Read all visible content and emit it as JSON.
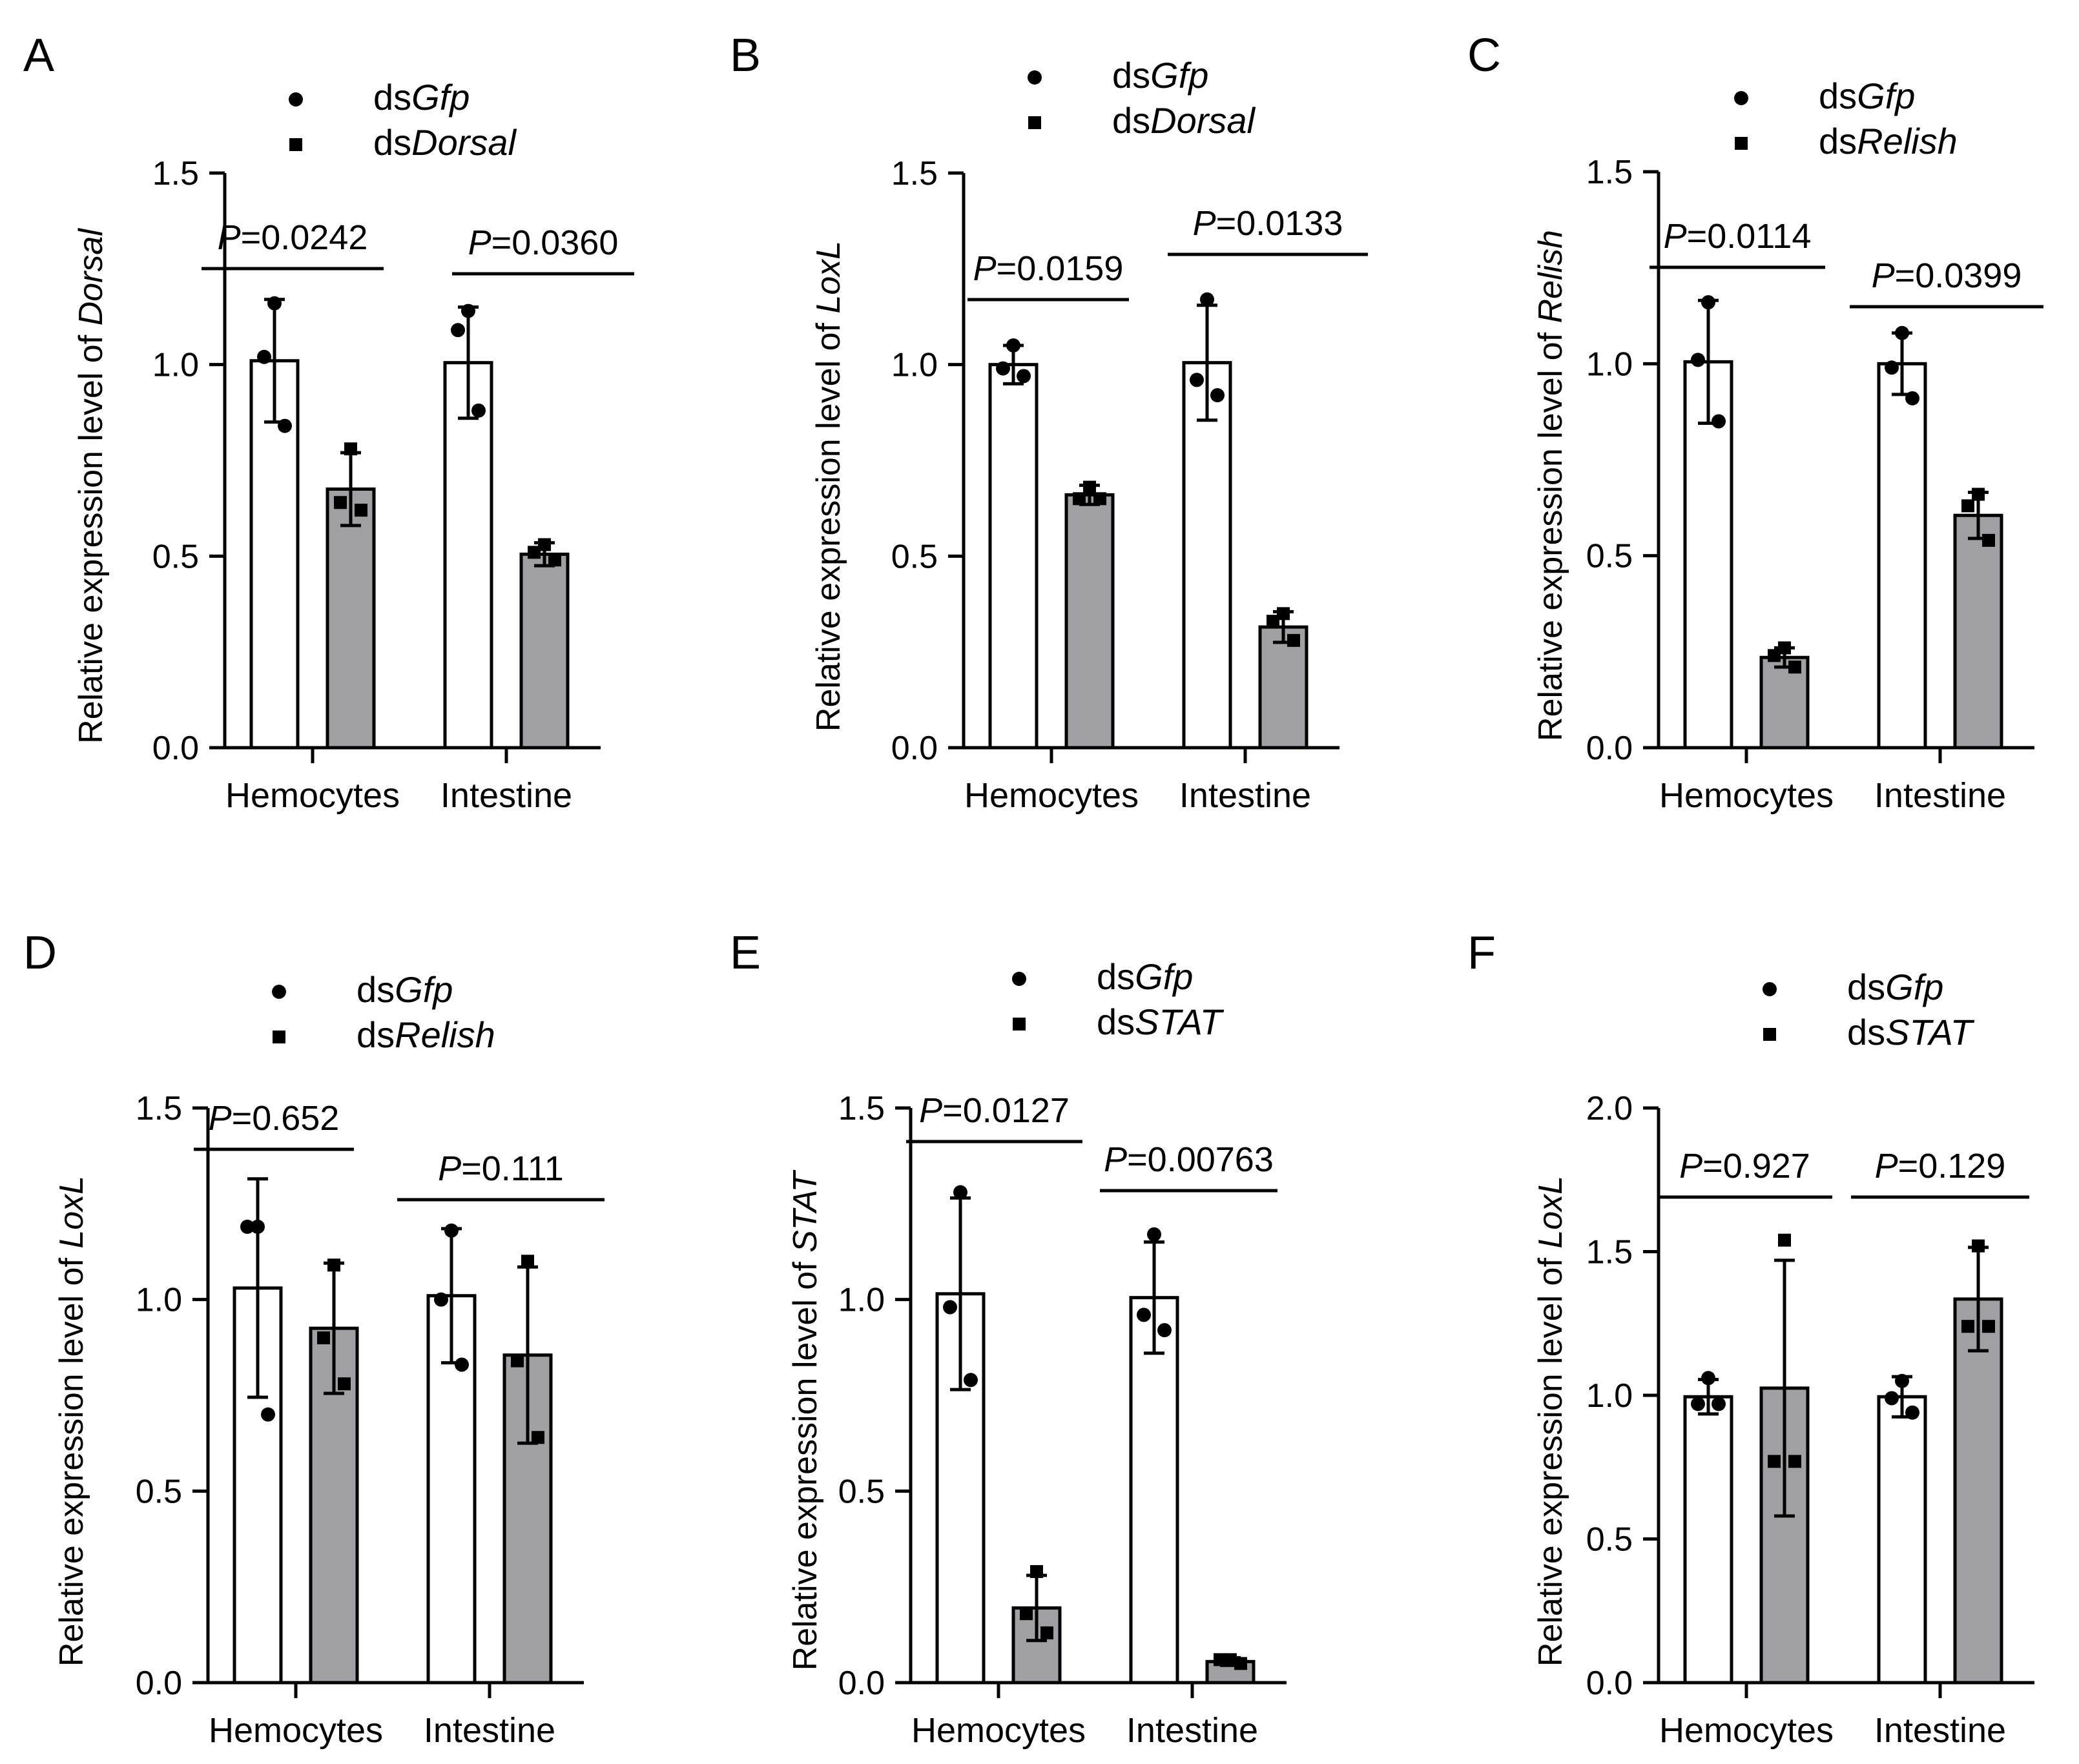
{
  "figure": {
    "colors": {
      "control_bar": "#ffffff",
      "treatment_bar": "#a0a0a4",
      "ink": "#000000"
    },
    "icons": {
      "control_marker": "circle",
      "treatment_marker": "square"
    }
  },
  "chart_data": [
    {
      "panel": "A",
      "type": "bar",
      "ylabel_prefix": "Relative expression level of ",
      "ylabel_gene": "Dorsal",
      "ylim": [
        0,
        1.5
      ],
      "yticks": [
        "0.0",
        "0.5",
        "1.0",
        "1.5"
      ],
      "categories": [
        "Hemocytes",
        "Intestine"
      ],
      "series": [
        {
          "name": "Gfp",
          "name_prefix": "ds",
          "marker": "circle",
          "values": [
            1.01,
            1.005
          ],
          "sd": [
            0.16,
            0.145
          ],
          "points": [
            [
              1.16,
              1.02,
              0.84
            ],
            [
              1.14,
              1.09,
              0.88
            ]
          ]
        },
        {
          "name": "Dorsal",
          "name_prefix": "ds",
          "marker": "square",
          "values": [
            0.675,
            0.505
          ],
          "sd": [
            0.095,
            0.03
          ],
          "points": [
            [
              0.78,
              0.64,
              0.62
            ],
            [
              0.53,
              0.51,
              0.49
            ]
          ]
        }
      ],
      "pvalues": [
        {
          "category": "Hemocytes",
          "letter": "P",
          "value": "=0.0242"
        },
        {
          "category": "Intestine",
          "letter": "P",
          "value": "=0.0360"
        }
      ]
    },
    {
      "panel": "B",
      "type": "bar",
      "ylabel_prefix": "Relative expression level of ",
      "ylabel_gene": "LoxL",
      "ylim": [
        0,
        1.5
      ],
      "yticks": [
        "0.0",
        "0.5",
        "1.0",
        "1.5"
      ],
      "categories": [
        "Hemocytes",
        "Intestine"
      ],
      "series": [
        {
          "name": "Gfp",
          "name_prefix": "ds",
          "marker": "circle",
          "values": [
            1.0,
            1.005
          ],
          "sd": [
            0.05,
            0.15
          ],
          "points": [
            [
              1.05,
              0.99,
              0.97
            ],
            [
              1.17,
              0.96,
              0.92
            ]
          ]
        },
        {
          "name": "Dorsal",
          "name_prefix": "ds",
          "marker": "square",
          "values": [
            0.66,
            0.315
          ],
          "sd": [
            0.025,
            0.04
          ],
          "points": [
            [
              0.68,
              0.65,
              0.65
            ],
            [
              0.35,
              0.33,
              0.28
            ]
          ]
        }
      ],
      "pvalues": [
        {
          "category": "Hemocytes",
          "letter": "P",
          "value": "=0.0159"
        },
        {
          "category": "Intestine",
          "letter": "P",
          "value": "=0.0133"
        }
      ]
    },
    {
      "panel": "C",
      "type": "bar",
      "ylabel_prefix": "Relative expression level of ",
      "ylabel_gene": "Relish",
      "ylim": [
        0,
        1.5
      ],
      "yticks": [
        "0.0",
        "0.5",
        "1.0",
        "1.5"
      ],
      "categories": [
        "Hemocytes",
        "Intestine"
      ],
      "series": [
        {
          "name": "Gfp",
          "name_prefix": "ds",
          "marker": "circle",
          "values": [
            1.005,
            1.0
          ],
          "sd": [
            0.16,
            0.08
          ],
          "points": [
            [
              1.16,
              1.01,
              0.85
            ],
            [
              1.08,
              0.99,
              0.91
            ]
          ]
        },
        {
          "name": "Relish",
          "name_prefix": "ds",
          "marker": "square",
          "values": [
            0.235,
            0.605
          ],
          "sd": [
            0.025,
            0.06
          ],
          "points": [
            [
              0.26,
              0.24,
              0.21
            ],
            [
              0.66,
              0.63,
              0.54
            ]
          ]
        }
      ],
      "pvalues": [
        {
          "category": "Hemocytes",
          "letter": "P",
          "value": "=0.0114"
        },
        {
          "category": "Intestine",
          "letter": "P",
          "value": "=0.0399"
        }
      ]
    },
    {
      "panel": "D",
      "type": "bar",
      "ylabel_prefix": "Relative expression level of ",
      "ylabel_gene": "LoxL",
      "ylim": [
        0,
        1.5
      ],
      "yticks": [
        "0.0",
        "0.5",
        "1.0",
        "1.5"
      ],
      "categories": [
        "Hemocytes",
        "Intestine"
      ],
      "series": [
        {
          "name": "Gfp",
          "name_prefix": "ds",
          "marker": "circle",
          "values": [
            1.03,
            1.01
          ],
          "sd": [
            0.285,
            0.175
          ],
          "points": [
            [
              1.19,
              1.19,
              0.7
            ],
            [
              1.18,
              1.0,
              0.83
            ]
          ]
        },
        {
          "name": "Relish",
          "name_prefix": "ds",
          "marker": "square",
          "values": [
            0.925,
            0.855
          ],
          "sd": [
            0.17,
            0.23
          ],
          "points": [
            [
              1.09,
              0.9,
              0.78
            ],
            [
              1.1,
              0.84,
              0.64
            ]
          ]
        }
      ],
      "pvalues": [
        {
          "category": "Hemocytes",
          "letter": "P",
          "value": "=0.652"
        },
        {
          "category": "Intestine",
          "letter": "P",
          "value": "=0.111"
        }
      ]
    },
    {
      "panel": "E",
      "type": "bar",
      "ylabel_prefix": "Relative expression level of ",
      "ylabel_gene": "STAT",
      "ylim": [
        0,
        1.5
      ],
      "yticks": [
        "0.0",
        "0.5",
        "1.0",
        "1.5"
      ],
      "categories": [
        "Hemocytes",
        "Intestine"
      ],
      "series": [
        {
          "name": "Gfp",
          "name_prefix": "ds",
          "marker": "circle",
          "values": [
            1.015,
            1.005
          ],
          "sd": [
            0.25,
            0.145
          ],
          "points": [
            [
              1.28,
              0.98,
              0.79
            ],
            [
              1.17,
              0.96,
              0.92
            ]
          ]
        },
        {
          "name": "STAT",
          "name_prefix": "ds",
          "marker": "square",
          "values": [
            0.195,
            0.055
          ],
          "sd": [
            0.085,
            0.01
          ],
          "points": [
            [
              0.29,
              0.18,
              0.13
            ],
            [
              0.06,
              0.06,
              0.05
            ]
          ]
        }
      ],
      "pvalues": [
        {
          "category": "Hemocytes",
          "letter": "P",
          "value": "=0.0127"
        },
        {
          "category": "Intestine",
          "letter": "P",
          "value": "=0.00763"
        }
      ]
    },
    {
      "panel": "F",
      "type": "bar",
      "ylabel_prefix": "Relative expression level of ",
      "ylabel_gene": "LoxL",
      "ylim": [
        0,
        2.0
      ],
      "yticks": [
        "0.0",
        "0.5",
        "1.0",
        "1.5",
        "2.0"
      ],
      "categories": [
        "Hemocytes",
        "Intestine"
      ],
      "series": [
        {
          "name": "Gfp",
          "name_prefix": "ds",
          "marker": "circle",
          "values": [
            0.995,
            0.995
          ],
          "sd": [
            0.06,
            0.07
          ],
          "points": [
            [
              1.06,
              0.97,
              0.97
            ],
            [
              1.05,
              0.99,
              0.94
            ]
          ]
        },
        {
          "name": "STAT",
          "name_prefix": "ds",
          "marker": "square",
          "values": [
            1.025,
            1.335
          ],
          "sd": [
            0.445,
            0.18
          ],
          "points": [
            [
              1.54,
              0.77,
              0.77
            ],
            [
              1.52,
              1.24,
              1.24
            ]
          ]
        }
      ],
      "pvalues": [
        {
          "category": "Hemocytes",
          "letter": "P",
          "value": "=0.927"
        },
        {
          "category": "Intestine",
          "letter": "P",
          "value": "=0.129"
        }
      ]
    }
  ]
}
